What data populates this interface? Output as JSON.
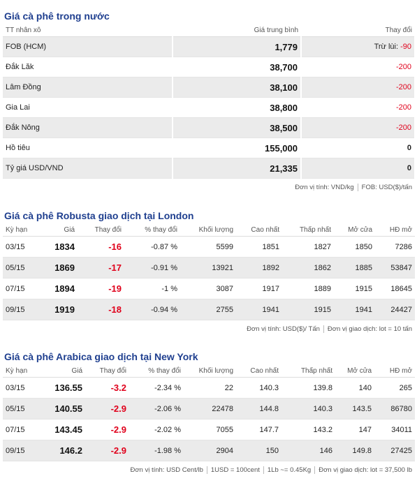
{
  "domestic": {
    "title": "Giá cà phê trong nước",
    "headers": [
      "TT nhân xô",
      "Giá trung bình",
      "Thay đổi"
    ],
    "fob_prefix": "Trừ lùi:",
    "rows": [
      [
        "FOB (HCM)",
        "1,779",
        "-90"
      ],
      [
        "Đắk Lăk",
        "38,700",
        "-200"
      ],
      [
        "Lâm Đồng",
        "38,100",
        "-200"
      ],
      [
        "Gia Lai",
        "38,800",
        "-200"
      ],
      [
        "Đắk Nông",
        "38,500",
        "-200"
      ],
      [
        "Hồ tiêu",
        "155,000",
        "0"
      ],
      [
        "Tỷ giá USD/VND",
        "21,335",
        "0"
      ]
    ],
    "note": [
      "Đơn vị tính: VND/kg",
      "FOB: USD($)/tấn"
    ]
  },
  "robusta": {
    "title": "Giá cà phê Robusta giao dịch tại London",
    "headers": [
      "Kỳ hạn",
      "Giá",
      "Thay đổi",
      "% thay đổi",
      "Khối lượng",
      "Cao nhất",
      "Thấp nhất",
      "Mở cửa",
      "HĐ mở"
    ],
    "rows": [
      [
        "03/15",
        "1834",
        "-16",
        "-0.87 %",
        "5599",
        "1851",
        "1827",
        "1850",
        "7286"
      ],
      [
        "05/15",
        "1869",
        "-17",
        "-0.91 %",
        "13921",
        "1892",
        "1862",
        "1885",
        "53847"
      ],
      [
        "07/15",
        "1894",
        "-19",
        "-1 %",
        "3087",
        "1917",
        "1889",
        "1915",
        "18645"
      ],
      [
        "09/15",
        "1919",
        "-18",
        "-0.94 %",
        "2755",
        "1941",
        "1915",
        "1941",
        "24427"
      ]
    ],
    "note": [
      "Đơn vị tính: USD($)/ Tấn",
      "Đơn vị giao dịch: lot = 10 tấn"
    ]
  },
  "arabica": {
    "title": "Giá cà phê Arabica giao dịch tại New York",
    "headers": [
      "Kỳ hạn",
      "Giá",
      "Thay đổi",
      "% thay đổi",
      "Khối lượng",
      "Cao nhất",
      "Thấp nhất",
      "Mở cửa",
      "HĐ mở"
    ],
    "rows": [
      [
        "03/15",
        "136.55",
        "-3.2",
        "-2.34 %",
        "22",
        "140.3",
        "139.8",
        "140",
        "265"
      ],
      [
        "05/15",
        "140.55",
        "-2.9",
        "-2.06 %",
        "22478",
        "144.8",
        "140.3",
        "143.5",
        "86780"
      ],
      [
        "07/15",
        "143.45",
        "-2.9",
        "-2.02 %",
        "7055",
        "147.7",
        "143.2",
        "147",
        "34011"
      ],
      [
        "09/15",
        "146.2",
        "-2.9",
        "-1.98 %",
        "2904",
        "150",
        "146",
        "149.8",
        "27425"
      ]
    ],
    "note": [
      "Đơn vị tính: USD Cent/lb",
      "1USD = 100cent",
      "1Lb ~= 0.45Kg",
      "Đơn vị giao dịch: lot = 37,500 lb"
    ]
  }
}
